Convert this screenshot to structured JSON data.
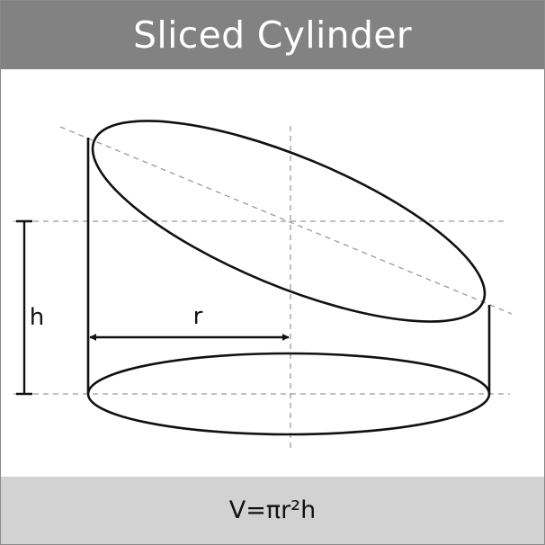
{
  "title": "Sliced Cylinder",
  "labels": {
    "height": "h",
    "radius": "r"
  },
  "formula": "V=πr²h",
  "colors": {
    "header_background": "#828282",
    "header_text": "#ffffff",
    "footer_background": "#d2d2d2",
    "outline": "#111111",
    "guide_lines": "#9a9a9a"
  }
}
